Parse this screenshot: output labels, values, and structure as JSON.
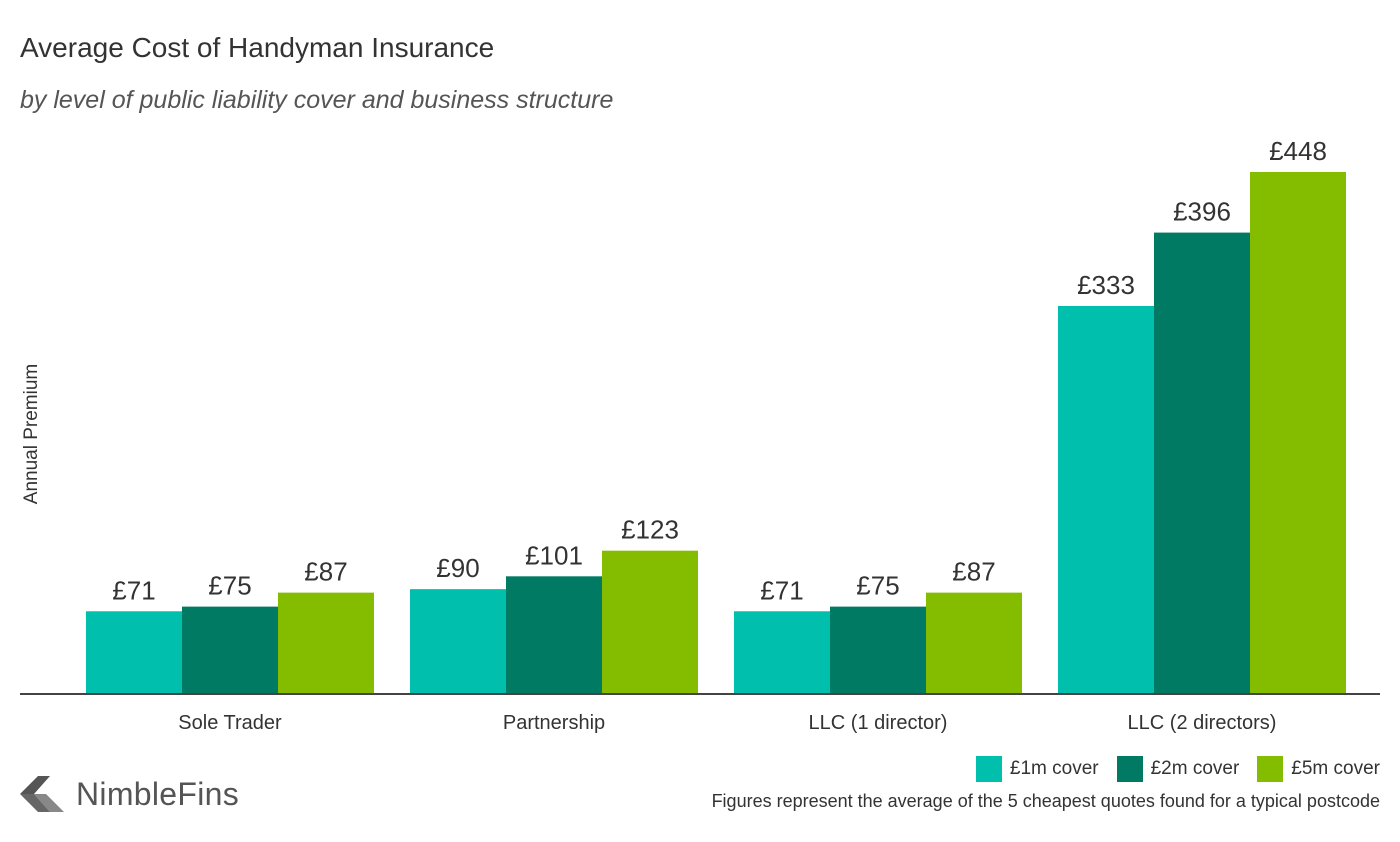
{
  "header": {
    "title": "Average Cost of Handyman Insurance",
    "subtitle": "by level of public liability cover and business structure"
  },
  "brand": {
    "name": "NimbleFins"
  },
  "footnote": "Figures represent the average of the 5 cheapest quotes found for a typical postcode",
  "legend": [
    {
      "label": "£1m cover",
      "color": "#00bfac"
    },
    {
      "label": "£2m cover",
      "color": "#007a63"
    },
    {
      "label": "£5m cover",
      "color": "#84bd00"
    }
  ],
  "chart_data": {
    "type": "bar",
    "title": "Average Cost of Handyman Insurance",
    "subtitle": "by level of public liability cover and business structure",
    "xlabel": "",
    "ylabel": "Annual Premium",
    "categories": [
      "Sole Trader",
      "Partnership",
      "LLC (1 director)",
      "LLC (2 directors)"
    ],
    "series": [
      {
        "name": "£1m cover",
        "color": "#00bfac",
        "values": [
          71,
          90,
          71,
          333
        ],
        "labels": [
          "£71",
          "£90",
          "£71",
          "£333"
        ]
      },
      {
        "name": "£2m cover",
        "color": "#007a63",
        "values": [
          75,
          101,
          75,
          396
        ],
        "labels": [
          "£75",
          "£101",
          "£75",
          "£396"
        ]
      },
      {
        "name": "£5m cover",
        "color": "#84bd00",
        "values": [
          87,
          123,
          87,
          448
        ],
        "labels": [
          "£87",
          "£123",
          "£87",
          "£448"
        ]
      }
    ],
    "ylim": [
      0,
      448
    ],
    "grid": false,
    "legend_position": "bottom-right"
  }
}
